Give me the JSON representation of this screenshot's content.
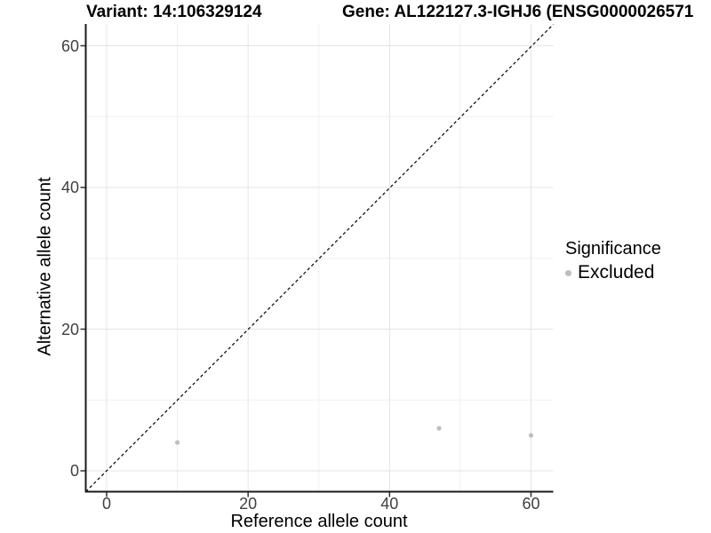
{
  "figure": {
    "variant_title": "Variant: 14:106329124",
    "gene_title": "Gene: AL122127.3-IGHJ6 (ENSG0000026571"
  },
  "chart_data": {
    "type": "scatter",
    "title_left": "Variant: 14:106329124",
    "title_right": "Gene: AL122127.3-IGHJ6 (ENSG0000026571",
    "xlabel": "Reference allele count",
    "ylabel": "Alternative allele count",
    "xlim": [
      -3.15,
      63.15
    ],
    "ylim": [
      -3.15,
      63.15
    ],
    "x_ticks": [
      0,
      20,
      40,
      60
    ],
    "y_ticks": [
      0,
      20,
      40,
      60
    ],
    "minor_gridlines": [
      10,
      30,
      50
    ],
    "grid": "on",
    "legend_position": "right",
    "series": [
      {
        "name": "Excluded",
        "color": "#bebebe",
        "points": [
          {
            "x": 10,
            "y": 4
          },
          {
            "x": 47,
            "y": 6
          },
          {
            "x": 60,
            "y": 5
          }
        ]
      }
    ],
    "identity_line": {
      "slope": 1,
      "intercept": 0,
      "style": "dashed",
      "color": "#000000"
    }
  },
  "legend": {
    "title": "Significance",
    "items": [
      {
        "label": "Excluded",
        "color": "#bebebe"
      }
    ]
  },
  "colors": {
    "background": "#ffffff",
    "axis_line": "#1a1a1a",
    "tick_mark": "#333333",
    "tick_label": "#404040",
    "grid_major": "#e4e4e4",
    "grid_minor": "#f0f0f0"
  }
}
